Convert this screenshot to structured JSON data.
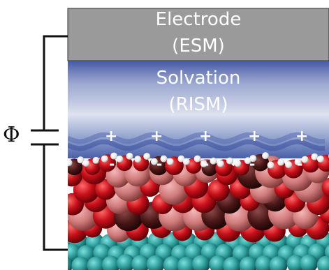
{
  "electrode": {
    "title": "Electrode",
    "method": "(ESM)",
    "color": "#9a9a9a"
  },
  "solvation": {
    "title": "Solvation",
    "method": "(RISM)",
    "color": "#3a4fa0"
  },
  "potential": {
    "symbol": "Φ"
  },
  "charges": {
    "positive": [
      "+",
      "+",
      "+",
      "+",
      "+"
    ],
    "negative": [
      "-",
      "-",
      "-",
      "-",
      "-"
    ]
  },
  "atom_colors": {
    "oxygen": "#c8101a",
    "hydrogen": "#ffffff",
    "metal": "#d07a7a",
    "surface": "#2a9a98",
    "dark": "#3a1010"
  }
}
